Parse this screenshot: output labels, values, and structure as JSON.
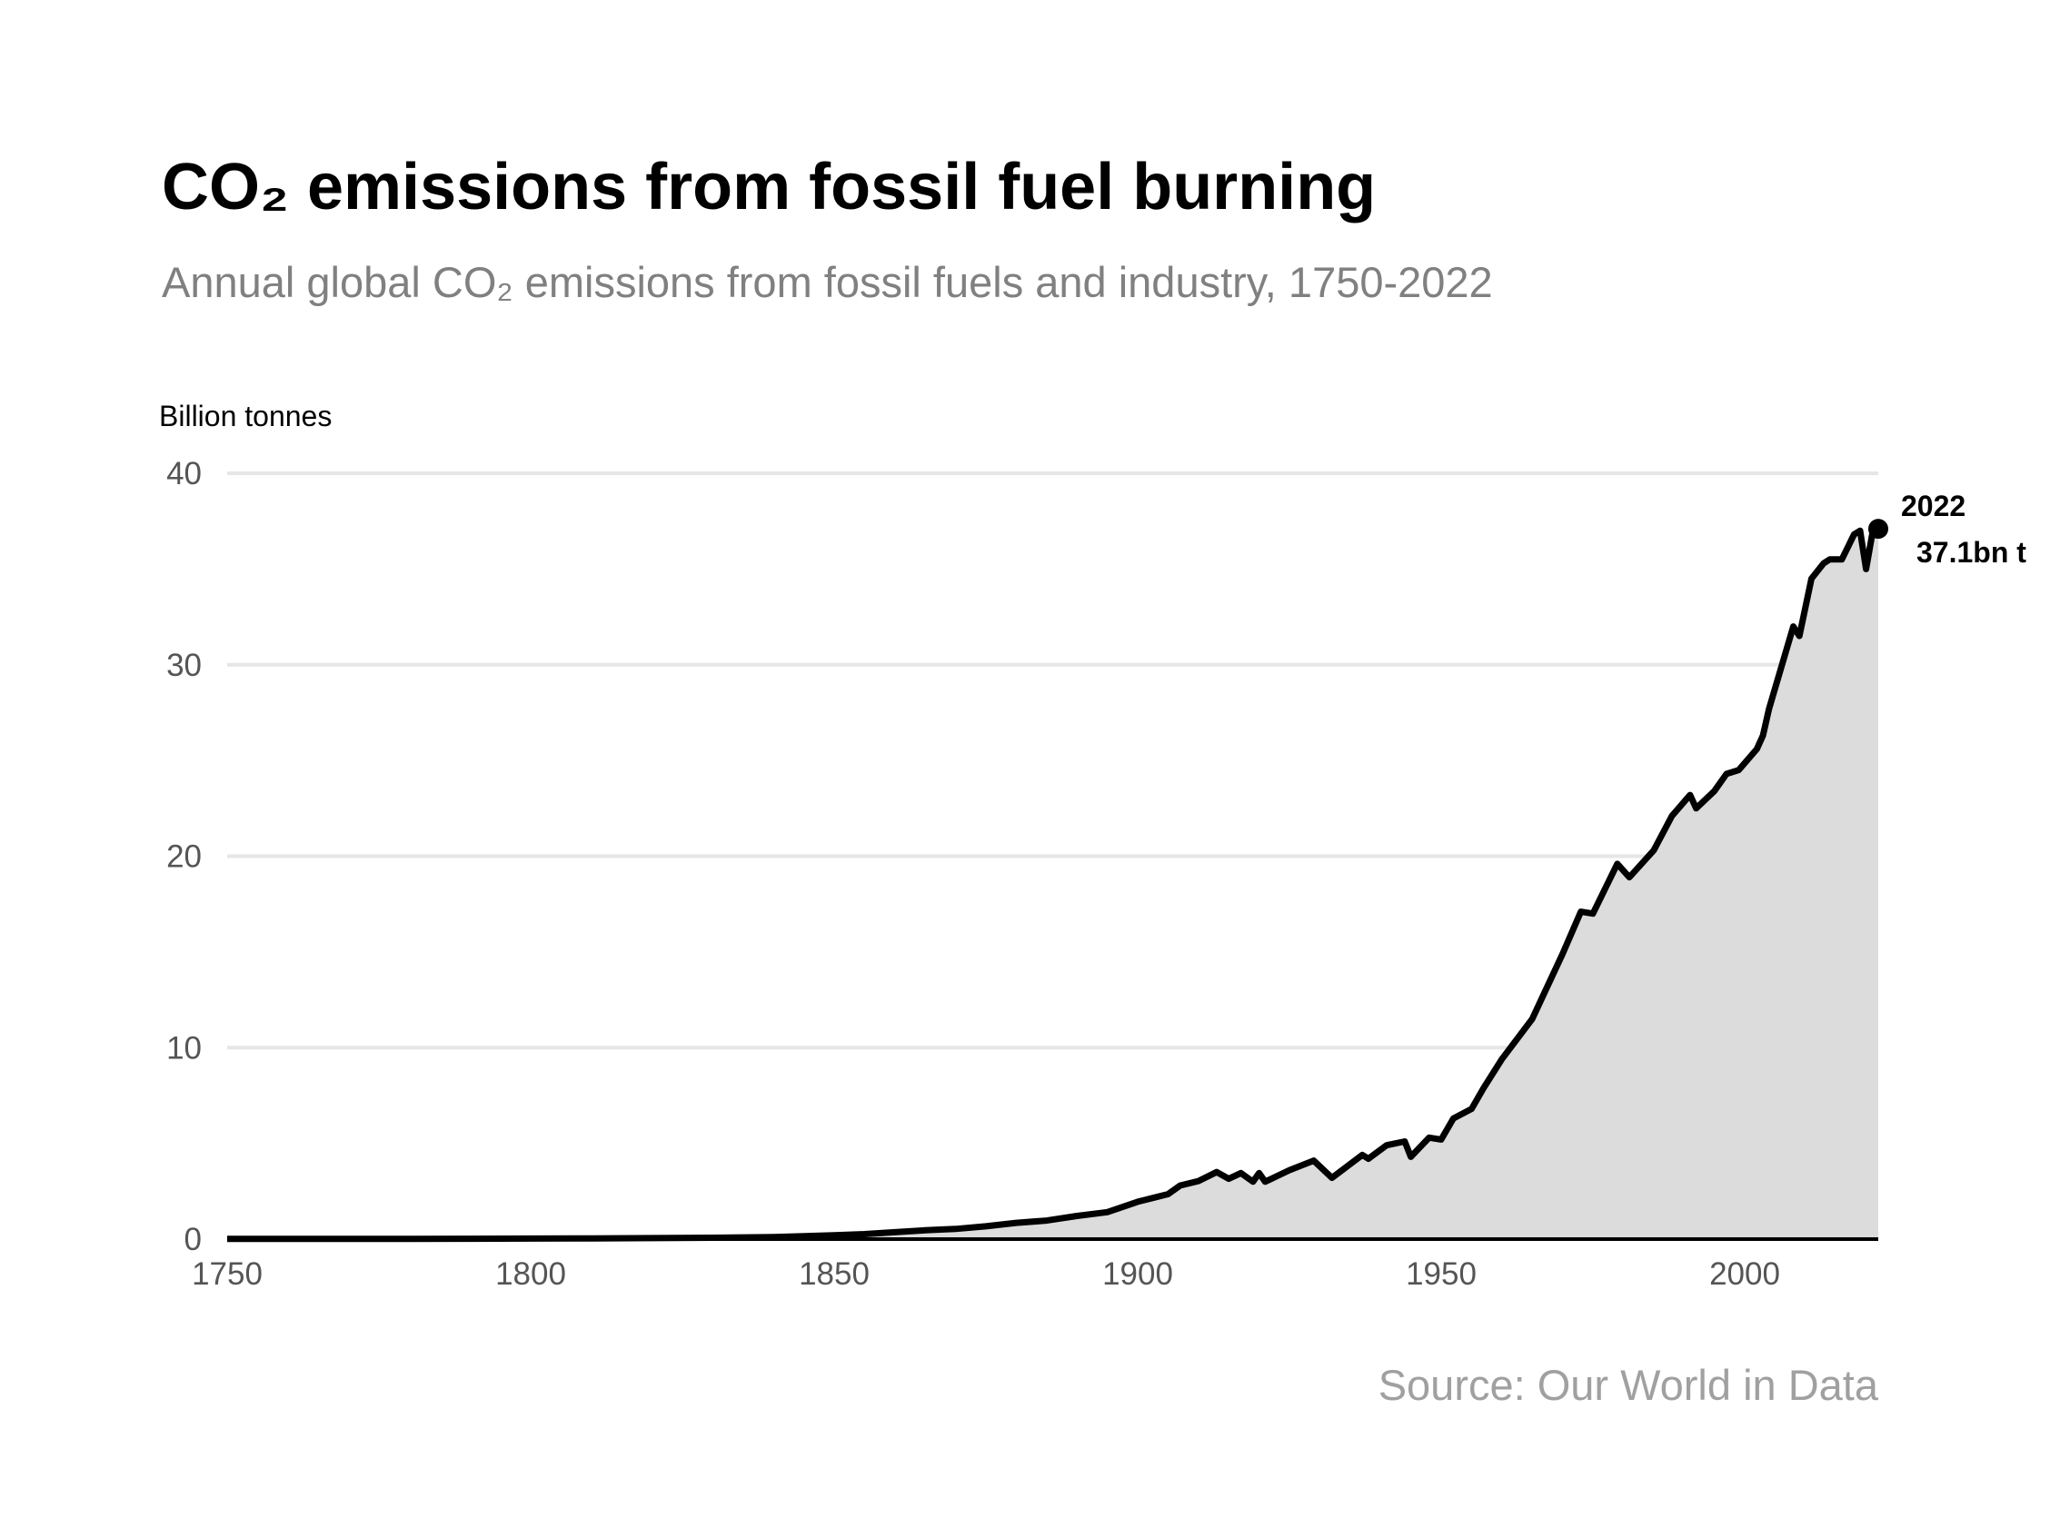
{
  "chart_data": {
    "type": "area-line",
    "title": "CO₂ emissions from fossil fuel burning",
    "subtitle": "Annual global CO₂ emissions from fossil fuels and industry, 1750-2022",
    "y_axis_label": "Billion tonnes",
    "source": "Source: Our World in Data",
    "x": [
      1750,
      1760,
      1770,
      1780,
      1790,
      1800,
      1810,
      1820,
      1830,
      1840,
      1850,
      1855,
      1860,
      1865,
      1870,
      1875,
      1880,
      1885,
      1890,
      1895,
      1900,
      1905,
      1907,
      1910,
      1913,
      1915,
      1917,
      1919,
      1920,
      1921,
      1925,
      1929,
      1932,
      1937,
      1938,
      1941,
      1944,
      1945,
      1948,
      1950,
      1952,
      1955,
      1957,
      1960,
      1965,
      1970,
      1973,
      1975,
      1979,
      1981,
      1985,
      1988,
      1991,
      1992,
      1995,
      1997,
      1999,
      2002,
      2003,
      2004,
      2008,
      2009,
      2011,
      2013,
      2014,
      2016,
      2018,
      2019,
      2020,
      2021,
      2022
    ],
    "values": [
      0.01,
      0.01,
      0.01,
      0.01,
      0.02,
      0.03,
      0.04,
      0.05,
      0.07,
      0.11,
      0.2,
      0.26,
      0.36,
      0.46,
      0.53,
      0.67,
      0.85,
      0.97,
      1.21,
      1.41,
      1.95,
      2.35,
      2.8,
      3.03,
      3.5,
      3.15,
      3.45,
      3.0,
      3.45,
      3.0,
      3.6,
      4.1,
      3.2,
      4.4,
      4.2,
      4.9,
      5.1,
      4.3,
      5.3,
      5.2,
      6.3,
      6.8,
      7.9,
      9.4,
      11.5,
      14.9,
      17.1,
      17.0,
      19.6,
      18.9,
      20.3,
      22.1,
      23.2,
      22.5,
      23.4,
      24.3,
      24.5,
      25.6,
      26.3,
      27.7,
      32.0,
      31.5,
      34.5,
      35.3,
      35.5,
      35.5,
      36.8,
      37.0,
      35.0,
      36.8,
      37.1
    ],
    "value_labels": [
      null,
      null,
      null,
      null,
      null,
      null,
      null,
      null,
      null,
      null,
      null,
      null,
      null,
      null,
      null,
      null,
      null,
      null,
      null,
      null,
      null,
      null,
      null,
      null,
      null,
      null,
      null,
      null,
      null,
      null,
      null,
      null,
      null,
      null,
      null,
      null,
      null,
      null,
      null,
      null,
      null,
      null,
      null,
      null,
      null,
      null,
      null,
      null,
      null,
      null,
      null,
      null,
      null,
      null,
      null,
      null,
      null,
      null,
      null,
      null,
      null,
      null,
      null,
      null,
      null,
      null,
      null,
      null,
      null,
      null,
      "37.1bn t"
    ],
    "line_color": "#000000",
    "area_color": "#dcdcdc",
    "xlim": [
      1750,
      2022
    ],
    "xticks": [
      1750,
      1800,
      1850,
      1900,
      1950,
      2000
    ],
    "ylim": [
      0,
      40
    ],
    "yticks": [
      0,
      10,
      20,
      30,
      40
    ],
    "grid": true
  }
}
